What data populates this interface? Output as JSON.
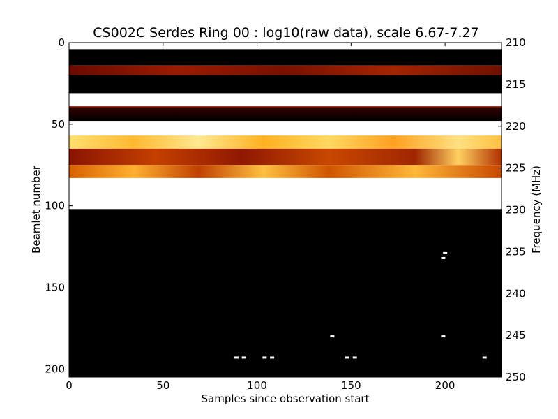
{
  "chart_data": {
    "type": "heatmap",
    "title": "CS002C Serdes Ring 00 : log10(raw data), scale 6.67-7.27",
    "xlabel": "Samples since observation start",
    "ylabel": "Beamlet number",
    "ylabel_right": "Frequency (MHz)",
    "xlim": [
      0,
      230
    ],
    "ylim": [
      0,
      205
    ],
    "ylim_right": [
      210,
      250
    ],
    "y_inverted": true,
    "x_ticks": [
      0,
      50,
      100,
      150,
      200
    ],
    "y_ticks": [
      0,
      50,
      100,
      150,
      200
    ],
    "y_right_ticks": [
      210,
      215,
      220,
      225,
      230,
      235,
      240,
      245,
      250
    ],
    "color_scale": [
      6.67,
      7.27
    ],
    "colormap": [
      "#000000",
      "#7a0d00",
      "#e06800",
      "#ffcc40",
      "#ffffff"
    ],
    "bands": [
      {
        "y0": 0,
        "y1": 4,
        "level": "none"
      },
      {
        "y0": 4,
        "y1": 14,
        "level": "black"
      },
      {
        "y0": 14,
        "y1": 20,
        "level": "dark-red-speckle"
      },
      {
        "y0": 20,
        "y1": 31,
        "level": "black"
      },
      {
        "y0": 31,
        "y1": 39,
        "level": "white"
      },
      {
        "y0": 39,
        "y1": 48,
        "level": "dark-red-stripe"
      },
      {
        "y0": 48,
        "y1": 57,
        "level": "white"
      },
      {
        "y0": 57,
        "y1": 65,
        "level": "orange-yellow"
      },
      {
        "y0": 65,
        "y1": 75,
        "level": "dark-red-mottled"
      },
      {
        "y0": 75,
        "y1": 83,
        "level": "orange-red-mottled"
      },
      {
        "y0": 83,
        "y1": 102,
        "level": "white"
      },
      {
        "y0": 102,
        "y1": 205,
        "level": "black"
      }
    ],
    "points": [
      {
        "x": 200,
        "y": 129
      },
      {
        "x": 199,
        "y": 132
      },
      {
        "x": 140,
        "y": 180
      },
      {
        "x": 199,
        "y": 180
      },
      {
        "x": 89,
        "y": 193
      },
      {
        "x": 93,
        "y": 193
      },
      {
        "x": 104,
        "y": 193
      },
      {
        "x": 108,
        "y": 193
      },
      {
        "x": 148,
        "y": 193
      },
      {
        "x": 152,
        "y": 193
      },
      {
        "x": 221,
        "y": 193
      }
    ]
  }
}
